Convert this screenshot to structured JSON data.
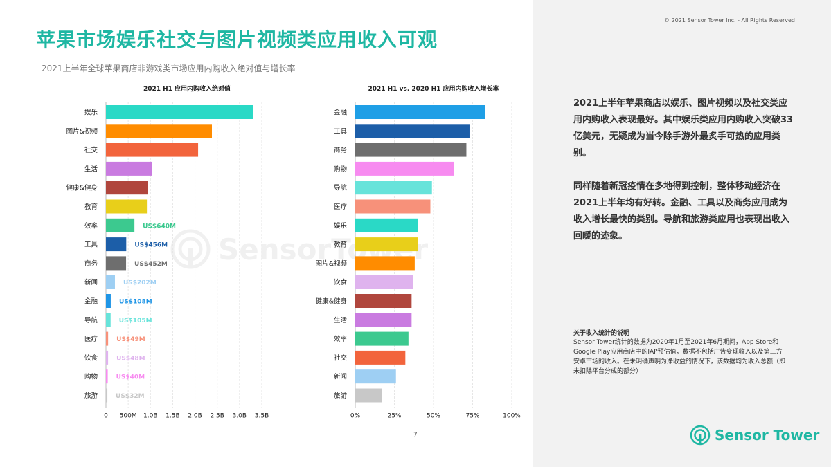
{
  "copyright": "© 2021 Sensor Tower Inc. - All Rights Reserved",
  "title": "苹果市场娱乐社交与图片视频类应用收入可观",
  "subtitle": "2021上半年全球苹果商店非游戏类市场应用内购收入绝对值与增长率",
  "page_number": "7",
  "brand": {
    "logo_text": "Sensor Tower",
    "watermark_text": "SensorTower",
    "accent": "#1fb7a3"
  },
  "panel": {
    "para1": "2021上半年苹果商店以娱乐、图片视频以及社交类应用内购收入表现最好。其中娱乐类应用内购收入突破33亿美元，无疑成为当今除手游外最炙手可热的应用类别。",
    "para2": "同样随着新冠疫情在多地得到控制，整体移动经济在2021上半年均有好转。金融、工具以及商务应用成为收入增长最快的类别。导航和旅游类应用也表现出收入回暖的迹象。",
    "note_title": "关于收入统计的说明",
    "note_body": "Sensor Tower统计的数据为2020年1月至2021年6月期间，App Store和Google Play应用商店中的IAP预估值，数据不包括广告变现收入以及第三方安卓市场的收入。在未明确声明为净收益的情况下，该数据均为收入总额（即未扣除平台分成的部分）"
  },
  "chart_data": [
    {
      "type": "bar",
      "orientation": "horizontal",
      "title": "2021 H1 应用内购收入绝对值",
      "categories": [
        "娱乐",
        "图片&视频",
        "社交",
        "生活",
        "健康&健身",
        "教育",
        "效率",
        "工具",
        "商务",
        "新闻",
        "金融",
        "导航",
        "医疗",
        "饮食",
        "购物",
        "旅游"
      ],
      "values": [
        3300,
        2380,
        2070,
        1040,
        940,
        920,
        640,
        456,
        452,
        202,
        108,
        105,
        49,
        48,
        40,
        32
      ],
      "data_labels": [
        "",
        "",
        "",
        "",
        "",
        "",
        "US$640M",
        "US$456M",
        "US$452M",
        "US$202M",
        "US$108M",
        "US$105M",
        "US$49M",
        "US$48M",
        "US$40M",
        "US$32M"
      ],
      "colors": [
        "#2ad9c6",
        "#ff8c00",
        "#f2643c",
        "#c97be0",
        "#b0463d",
        "#e8cf1a",
        "#3cc98f",
        "#1c5ea8",
        "#6e6e6e",
        "#9ecff3",
        "#1f95e6",
        "#67e3da",
        "#f7917a",
        "#dfb3ee",
        "#f78bf0",
        "#c8c8c8"
      ],
      "xlim": [
        0,
        3500
      ],
      "ticks": [
        0,
        500,
        1000,
        1500,
        2000,
        2500,
        3000,
        3500
      ],
      "tick_labels": [
        "0",
        "500M",
        "1.0B",
        "1.5B",
        "2.0B",
        "2.5B",
        "3.0B",
        "3.5B"
      ]
    },
    {
      "type": "bar",
      "orientation": "horizontal",
      "title": "2021 H1 vs. 2020 H1 应用内购收入增长率",
      "categories": [
        "金融",
        "工具",
        "商务",
        "购物",
        "导航",
        "医疗",
        "娱乐",
        "教育",
        "图片&视频",
        "饮食",
        "健康&健身",
        "生活",
        "效率",
        "社交",
        "新闻",
        "旅游"
      ],
      "values": [
        83,
        73,
        71,
        63,
        49,
        48,
        40,
        40,
        38,
        37,
        36,
        36,
        34,
        32,
        26,
        17
      ],
      "colors": [
        "#1f9fe6",
        "#1c5ea8",
        "#6e6e6e",
        "#f78bf0",
        "#67e3da",
        "#f7917a",
        "#2ad9c6",
        "#e8cf1a",
        "#ff8c00",
        "#dfb3ee",
        "#b0463d",
        "#c97be0",
        "#3cc98f",
        "#f2643c",
        "#9ecff3",
        "#c8c8c8"
      ],
      "xlim": [
        0,
        100
      ],
      "ticks": [
        0,
        25,
        50,
        75,
        100
      ],
      "tick_labels": [
        "0%",
        "25%",
        "50%",
        "75%",
        "100%"
      ]
    }
  ]
}
